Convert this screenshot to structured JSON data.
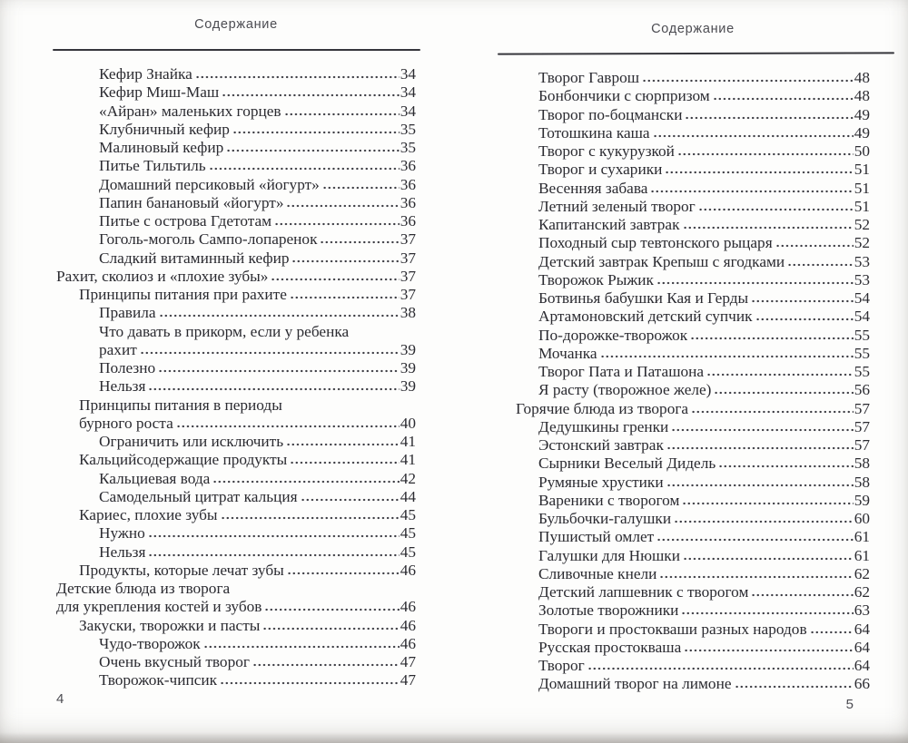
{
  "colors": {
    "paper": "#fdfdfc",
    "ink": "#2b2b31",
    "header_gray": "#4c4c52",
    "rule_gray": "#36363c",
    "dot_gray": "#3b3b42"
  },
  "pages": [
    {
      "header": "Содержание",
      "page_number": "4",
      "entries": [
        {
          "text": "Кефир Знайка",
          "page": "34",
          "level": 2
        },
        {
          "text": "Кефир Миш-Маш",
          "page": "34",
          "level": 2
        },
        {
          "text": "«Айран» маленьких горцев",
          "page": "34",
          "level": 2
        },
        {
          "text": "Клубничный кефир",
          "page": "35",
          "level": 2
        },
        {
          "text": "Малиновый кефир",
          "page": "35",
          "level": 2
        },
        {
          "text": "Питье Тильтиль",
          "page": "36",
          "level": 2
        },
        {
          "text": "Домашний персиковый «йогурт»",
          "page": "36",
          "level": 2
        },
        {
          "text": "Папин банановый «йогурт»",
          "page": "36",
          "level": 2
        },
        {
          "text": "Питье с острова Гдетотам",
          "page": "36",
          "level": 2
        },
        {
          "text": "Гоголь-моголь Сампо-лопаренок",
          "page": "37",
          "level": 2
        },
        {
          "text": "Сладкий витаминный кефир",
          "page": "37",
          "level": 2
        },
        {
          "text": "Рахит, сколиоз и «плохие зубы»",
          "page": "37",
          "level": 0
        },
        {
          "text": "Принципы питания при рахите",
          "page": "37",
          "level": 1
        },
        {
          "text": "Правила",
          "page": "38",
          "level": 2
        },
        {
          "text": "Что давать в прикорм, если у ребенка",
          "page": "",
          "level": 2
        },
        {
          "text": "рахит",
          "page": "39",
          "level": 2
        },
        {
          "text": "Полезно",
          "page": "39",
          "level": 2
        },
        {
          "text": "Нельзя",
          "page": "39",
          "level": 2
        },
        {
          "text": "Принципы питания в периоды",
          "page": "",
          "level": 1
        },
        {
          "text": "бурного роста",
          "page": "40",
          "level": 1
        },
        {
          "text": "Ограничить или исключить",
          "page": "41",
          "level": 2
        },
        {
          "text": "Кальцийсодержащие продукты",
          "page": "41",
          "level": 1
        },
        {
          "text": "Кальциевая вода",
          "page": "42",
          "level": 2
        },
        {
          "text": "Самодельный цитрат кальция",
          "page": "44",
          "level": 2
        },
        {
          "text": "Кариес, плохие зубы",
          "page": "45",
          "level": 1
        },
        {
          "text": "Нужно",
          "page": "45",
          "level": 2
        },
        {
          "text": "Нельзя",
          "page": "45",
          "level": 2
        },
        {
          "text": "Продукты, которые лечат зубы",
          "page": "46",
          "level": 1
        },
        {
          "text": "Детские блюда из творога",
          "page": "",
          "level": 0
        },
        {
          "text": "для укрепления костей и зубов",
          "page": "46",
          "level": 0
        },
        {
          "text": "Закуски, творожки и пасты",
          "page": "46",
          "level": 1
        },
        {
          "text": "Чудо-творожок",
          "page": "46",
          "level": 2
        },
        {
          "text": "Очень вкусный творог",
          "page": "47",
          "level": 2
        },
        {
          "text": "Творожок-чипсик",
          "page": "47",
          "level": 2
        }
      ]
    },
    {
      "header": "Содержание",
      "page_number": "5",
      "entries": [
        {
          "text": "Творог Гаврош",
          "page": "48",
          "level": 1
        },
        {
          "text": "Бонбончики с сюрпризом",
          "page": "48",
          "level": 1
        },
        {
          "text": "Творог по-боцмански",
          "page": "49",
          "level": 1
        },
        {
          "text": "Тотошкина каша",
          "page": "49",
          "level": 1
        },
        {
          "text": "Творог с кукурузкой",
          "page": "50",
          "level": 1
        },
        {
          "text": "Творог и сухарики",
          "page": "51",
          "level": 1
        },
        {
          "text": "Весенняя забава",
          "page": "51",
          "level": 1
        },
        {
          "text": "Летний зеленый творог",
          "page": "51",
          "level": 1
        },
        {
          "text": "Капитанский завтрак",
          "page": "52",
          "level": 1
        },
        {
          "text": "Походный сыр тевтонского рыцаря",
          "page": "52",
          "level": 1
        },
        {
          "text": "Детский завтрак Крепыш с ягодками",
          "page": "53",
          "level": 1
        },
        {
          "text": "Творожок Рыжик",
          "page": "53",
          "level": 1
        },
        {
          "text": "Ботвинья бабушки Кая и Герды",
          "page": "54",
          "level": 1
        },
        {
          "text": "Артамоновский детский супчик",
          "page": "54",
          "level": 1
        },
        {
          "text": "По-дорожке-творожок",
          "page": "55",
          "level": 1
        },
        {
          "text": "Мочанка",
          "page": "55",
          "level": 1
        },
        {
          "text": "Творог Пата и Паташона",
          "page": "55",
          "level": 1
        },
        {
          "text": "Я расту (творожное желе)",
          "page": "56",
          "level": 1
        },
        {
          "text": "Горячие блюда из творога",
          "page": "57",
          "level": 0
        },
        {
          "text": "Дедушкины гренки",
          "page": "57",
          "level": 1
        },
        {
          "text": "Эстонский завтрак",
          "page": "57",
          "level": 1
        },
        {
          "text": "Сырники Веселый Дидель",
          "page": "58",
          "level": 1
        },
        {
          "text": "Румяные хрустики",
          "page": "58",
          "level": 1
        },
        {
          "text": "Вареники с творогом",
          "page": "59",
          "level": 1
        },
        {
          "text": "Бульбочки-галушки",
          "page": "60",
          "level": 1
        },
        {
          "text": "Пушистый омлет",
          "page": "61",
          "level": 1
        },
        {
          "text": "Галушки для Нюшки",
          "page": "61",
          "level": 1
        },
        {
          "text": "Сливочные кнели",
          "page": "62",
          "level": 1
        },
        {
          "text": "Детский лапшевник с творогом",
          "page": "62",
          "level": 1
        },
        {
          "text": "Золотые творожники",
          "page": "63",
          "level": 1
        },
        {
          "text": "Твороги и простокваши разных народов",
          "page": "64",
          "level": 1
        },
        {
          "text": "Русская простокваша",
          "page": "64",
          "level": 1
        },
        {
          "text": "Творог",
          "page": "64",
          "level": 1
        },
        {
          "text": "Домашний творог на лимоне",
          "page": "66",
          "level": 1
        }
      ]
    }
  ]
}
